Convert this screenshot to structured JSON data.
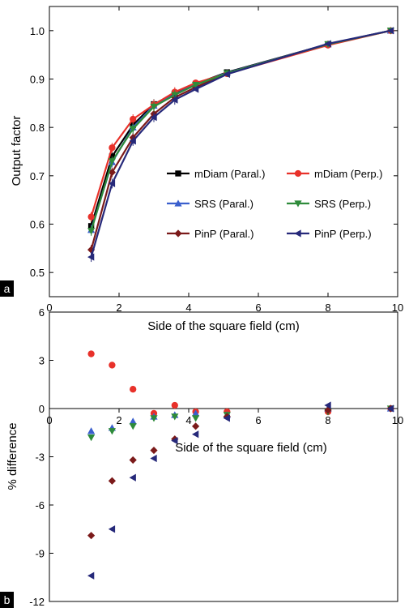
{
  "panel_labels": [
    "a",
    "b"
  ],
  "chart_data": [
    {
      "type": "line",
      "panel": "a",
      "xlabel": "Side of the square field (cm)",
      "ylabel": "Output factor",
      "xlim": [
        0,
        10
      ],
      "ylim": [
        0.45,
        1.05
      ],
      "x_ticks": [
        0,
        2,
        4,
        6,
        8,
        10
      ],
      "x_tick_labels": [
        "0",
        "2",
        "4",
        "6",
        "8",
        "10"
      ],
      "y_ticks": [
        0.5,
        0.6,
        0.7,
        0.8,
        0.9,
        1.0
      ],
      "y_tick_labels": [
        "0.5",
        "0.6",
        "0.7",
        "0.8",
        "0.9",
        "1.0"
      ],
      "grid": false,
      "legend_position": "bottom-right",
      "x": [
        1.2,
        1.8,
        2.4,
        3.0,
        3.6,
        4.2,
        5.1,
        8.0,
        9.8
      ],
      "series": [
        {
          "name": "mDiam (Paral.)",
          "color": "#000000",
          "marker": "square",
          "values": [
            0.596,
            0.74,
            0.805,
            0.848,
            0.87,
            0.89,
            0.914,
            0.972,
            1.0
          ]
        },
        {
          "name": "SRS (Paral.)",
          "color": "#3a5fcd",
          "marker": "triangle-up",
          "values": [
            0.588,
            0.728,
            0.8,
            0.845,
            0.868,
            0.889,
            0.913,
            0.972,
            1.0
          ]
        },
        {
          "name": "PinP (Paral.)",
          "color": "#7b1a1a",
          "marker": "diamond",
          "values": [
            0.547,
            0.707,
            0.779,
            0.828,
            0.862,
            0.883,
            0.912,
            0.972,
            1.0
          ]
        },
        {
          "name": "mDiam (Perp.)",
          "color": "#e8312a",
          "marker": "circle",
          "values": [
            0.615,
            0.758,
            0.817,
            0.847,
            0.873,
            0.892,
            0.911,
            0.97,
            1.0
          ]
        },
        {
          "name": "SRS (Perp.)",
          "color": "#2e8b3a",
          "marker": "triangle-down",
          "values": [
            0.586,
            0.73,
            0.797,
            0.843,
            0.867,
            0.888,
            0.912,
            0.972,
            1.0
          ]
        },
        {
          "name": "PinP (Perp.)",
          "color": "#26297a",
          "marker": "triangle-left",
          "values": [
            0.532,
            0.684,
            0.772,
            0.821,
            0.857,
            0.879,
            0.91,
            0.973,
            1.0
          ]
        }
      ]
    },
    {
      "type": "scatter",
      "panel": "b",
      "xlabel": "Side of the square field (cm)",
      "ylabel": "% difference",
      "xlim": [
        0,
        10
      ],
      "ylim": [
        -12,
        6
      ],
      "x_ticks": [
        0,
        2,
        4,
        6,
        8,
        10
      ],
      "x_tick_labels": [
        "0",
        "2",
        "4",
        "6",
        "8",
        "10"
      ],
      "y_ticks": [
        -12,
        -9,
        -6,
        -3,
        0,
        3,
        6
      ],
      "y_tick_labels": [
        "-12",
        "-9",
        "-6",
        "-3",
        "0",
        "3",
        "6"
      ],
      "grid": false,
      "x": [
        1.2,
        1.8,
        2.4,
        3.0,
        3.6,
        4.2,
        5.1,
        8.0,
        9.8
      ],
      "series": [
        {
          "name": "mDiam (Perp.)",
          "color": "#e8312a",
          "marker": "circle",
          "values": [
            3.4,
            2.7,
            1.2,
            -0.3,
            0.2,
            -0.2,
            -0.2,
            -0.2,
            0
          ]
        },
        {
          "name": "SRS (Paral.)",
          "color": "#3a5fcd",
          "marker": "triangle-up",
          "values": [
            -1.4,
            -1.2,
            -0.8,
            -0.5,
            -0.4,
            -0.3,
            -0.4,
            0,
            0
          ]
        },
        {
          "name": "SRS (Perp.)",
          "color": "#2e8b3a",
          "marker": "triangle-down",
          "values": [
            -1.8,
            -1.4,
            -1.1,
            -0.6,
            -0.5,
            -0.6,
            -0.4,
            -0.2,
            0
          ]
        },
        {
          "name": "PinP (Paral.)",
          "color": "#7b1a1a",
          "marker": "diamond",
          "values": [
            -7.9,
            -4.5,
            -3.2,
            -2.6,
            -1.9,
            -1.1,
            -0.5,
            -0.1,
            0
          ]
        },
        {
          "name": "PinP (Perp.)",
          "color": "#26297a",
          "marker": "triangle-left",
          "values": [
            -10.4,
            -7.5,
            -4.3,
            -3.1,
            -2.0,
            -1.6,
            -0.6,
            0.2,
            0
          ]
        }
      ]
    }
  ]
}
